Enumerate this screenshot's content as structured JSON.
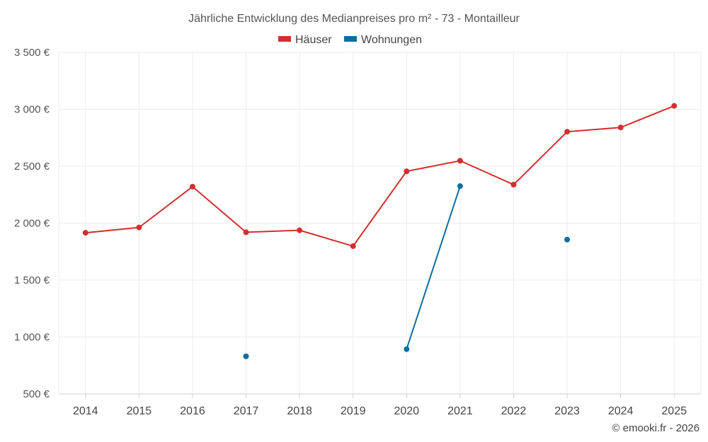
{
  "chart_data": {
    "type": "line",
    "title": "Jährliche Entwicklung des Medianpreises pro m² - 73 - Montailleur",
    "categories": [
      "2014",
      "2015",
      "2016",
      "2017",
      "2018",
      "2019",
      "2020",
      "2021",
      "2022",
      "2023",
      "2024",
      "2025"
    ],
    "ylim": [
      500,
      3500
    ],
    "yticks": [
      500,
      1000,
      1500,
      2000,
      2500,
      3000,
      3500
    ],
    "ytick_labels": [
      "500 €",
      "1 000 €",
      "1 500 €",
      "2 000 €",
      "2 500 €",
      "3 000 €",
      "3 500 €"
    ],
    "grid": true,
    "legend_position": "top-center",
    "series": [
      {
        "name": "Häuser",
        "color": "#d32f2f",
        "values": [
          1915,
          1962,
          2320,
          1920,
          1937,
          1798,
          2455,
          2548,
          2338,
          2803,
          2840,
          3030
        ]
      },
      {
        "name": "Wohnungen",
        "color": "#0d6ea0",
        "values": [
          null,
          null,
          null,
          830,
          null,
          null,
          893,
          2325,
          null,
          1855,
          null,
          null
        ]
      }
    ]
  },
  "credit": "© emooki.fr - 2026"
}
